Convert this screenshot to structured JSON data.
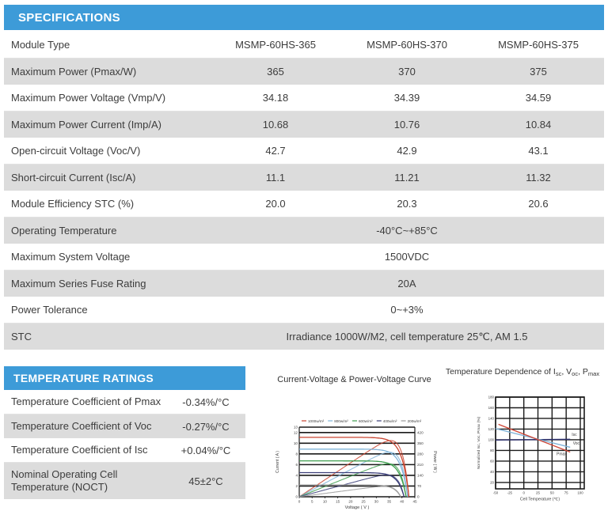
{
  "colors": {
    "banner_blue": "#3d9bd8",
    "row_gray": "#dcdcdc",
    "grid_black": "#1a1a1a",
    "series_red": "#c9432f",
    "series_lightblue": "#7fb3d8",
    "series_green": "#3f9e4f",
    "series_navy": "#3b3e78",
    "series_gray": "#9b9b9b"
  },
  "specifications": {
    "title": "SPECIFICATIONS",
    "rows": [
      {
        "label": "Module Type",
        "values": [
          "MSMP-60HS-365",
          "MSMP-60HS-370",
          "MSMP-60HS-375"
        ]
      },
      {
        "label": "Maximum Power (Pmax/W)",
        "values": [
          "365",
          "370",
          "375"
        ]
      },
      {
        "label": "Maximum Power Voltage (Vmp/V)",
        "values": [
          "34.18",
          "34.39",
          "34.59"
        ]
      },
      {
        "label": "Maximum Power Current (Imp/A)",
        "values": [
          "10.68",
          "10.76",
          "10.84"
        ]
      },
      {
        "label": "Open-circuit Voltage (Voc/V)",
        "values": [
          "42.7",
          "42.9",
          "43.1"
        ]
      },
      {
        "label": "Short-circuit Current (Isc/A)",
        "values": [
          "11.1",
          "11.21",
          "11.32"
        ]
      },
      {
        "label": "Module Efficiency STC (%)",
        "values": [
          "20.0",
          "20.3",
          "20.6"
        ]
      },
      {
        "label": "Operating Temperature",
        "span_value": "-40°C~+85°C"
      },
      {
        "label": "Maximum System Voltage",
        "span_value": "1500VDC"
      },
      {
        "label": "Maximum Series Fuse Rating",
        "span_value": "20A"
      },
      {
        "label": "Power Tolerance",
        "span_value": "0~+3%"
      },
      {
        "label": "STC",
        "span_value": "Irradiance 1000W/M2, cell temperature 25℃, AM 1.5"
      }
    ]
  },
  "temperature_ratings": {
    "title": "TEMPERATURE RATINGS",
    "rows": [
      {
        "label": "Temperature Coefficient of Pmax",
        "value": "-0.34%/°C"
      },
      {
        "label": "Temperature Coefficient of Voc",
        "value": "-0.27%/°C"
      },
      {
        "label": "Temperature Coefficient of Isc",
        "value": "+0.04%/°C"
      },
      {
        "label": "Nominal Operating Cell Temperature (NOCT)",
        "value": "45±2°C"
      }
    ]
  },
  "chart_data": [
    {
      "type": "line",
      "title": "Current-Voltage & Power-Voltage Curve",
      "xlabel": "Voltage ( V )",
      "ylabel_left": "Current ( A )",
      "ylabel_right": "Power ( W )",
      "xlim": [
        0,
        45
      ],
      "x_ticks": [
        0,
        5,
        10,
        15,
        20,
        25,
        30,
        35,
        40,
        45
      ],
      "ylim_left": [
        0,
        13
      ],
      "y_ticks_left": [
        0,
        2,
        4,
        6,
        8,
        10,
        12,
        13
      ],
      "y_ticks_right": [
        0,
        70,
        140,
        210,
        280,
        350,
        420
      ],
      "power_per_current": 35,
      "grid": true,
      "legend_position": "top",
      "note": "Each irradiance series has an I-V curve (flat plateau then drop at Voc) and a P-V curve (rises to Pmax then drops to 0 at Voc)",
      "series": [
        {
          "name": "1000w/m²",
          "color": "#c9432f",
          "isc": 11.1,
          "voc": 42.7,
          "pmax": 365
        },
        {
          "name": "800w/m²",
          "color": "#7fb3d8",
          "isc": 8.9,
          "voc": 42.2,
          "pmax": 293
        },
        {
          "name": "600w/m²",
          "color": "#3f9e4f",
          "isc": 6.7,
          "voc": 41.6,
          "pmax": 219
        },
        {
          "name": "400w/m²",
          "color": "#3b3e78",
          "isc": 4.5,
          "voc": 40.8,
          "pmax": 145
        },
        {
          "name": "200w/m²",
          "color": "#9b9b9b",
          "isc": 2.2,
          "voc": 39.5,
          "pmax": 71
        }
      ]
    },
    {
      "type": "line",
      "title_segments": [
        {
          "t": "Temperature Dependence of I"
        },
        {
          "sub": "sc"
        },
        {
          "t": ", V"
        },
        {
          "sub": "oc"
        },
        {
          "t": ", P"
        },
        {
          "sub": "max"
        }
      ],
      "title_plain": "Temperature Dependence of Isc, Voc, Pmax",
      "xlabel": "Cell Temperature (℃)",
      "ylabel": "Normalized Isc, Voc, Pmax (%)",
      "xlim": [
        -50,
        107
      ],
      "x_ticks": [
        -50,
        -25,
        0,
        25,
        50,
        75,
        100
      ],
      "ylim": [
        8,
        180
      ],
      "y_ticks": [
        20,
        40,
        60,
        80,
        100,
        120,
        140,
        160,
        180
      ],
      "grid": true,
      "series": [
        {
          "name": "Isc",
          "color": "#2e3170",
          "points": [
            [
              -50,
              99.5
            ],
            [
              82,
              101
            ]
          ],
          "label_xy": [
            85,
            107
          ]
        },
        {
          "name": "Voc",
          "color": "#7fb3d8",
          "points": [
            [
              -50,
              121
            ],
            [
              82,
              86
            ]
          ],
          "label_xy": [
            87,
            91
          ]
        },
        {
          "name": "Pmax",
          "color": "#d04a3a",
          "points": [
            [
              -45,
              129
            ],
            [
              82,
              77
            ]
          ],
          "label_xy": [
            58,
            71
          ]
        }
      ]
    }
  ]
}
